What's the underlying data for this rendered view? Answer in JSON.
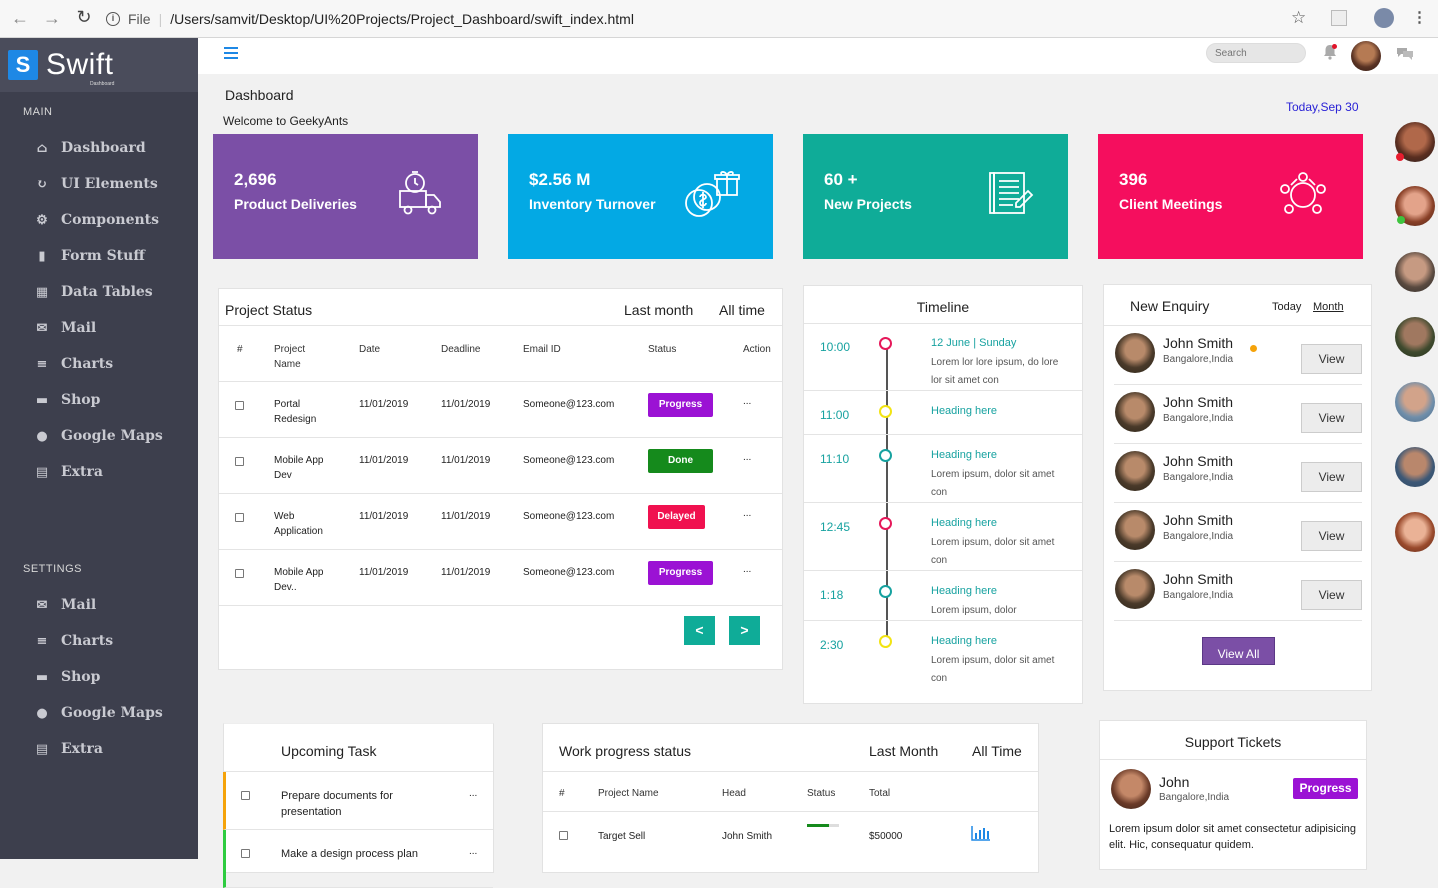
{
  "browser": {
    "file_label": "File",
    "url": "/Users/samvit/Desktop/UI%20Projects/Project_Dashboard/swift_index.html"
  },
  "brand": {
    "name": "Swift",
    "sub": "Dashboard",
    "logo_glyph": "S"
  },
  "sidebar": {
    "main_label": "MAIN",
    "main_items": [
      {
        "label": "Dashboard",
        "icon": "home-icon"
      },
      {
        "label": "UI Elements",
        "icon": "refresh-icon"
      },
      {
        "label": "Components",
        "icon": "gear-icon"
      },
      {
        "label": "Form Stuff",
        "icon": "file-icon"
      },
      {
        "label": "Data Tables",
        "icon": "table-icon"
      },
      {
        "label": "Mail",
        "icon": "mail-icon"
      },
      {
        "label": "Charts",
        "icon": "bars-icon"
      },
      {
        "label": "Shop",
        "icon": "card-icon"
      },
      {
        "label": "Google Maps",
        "icon": "pin-icon"
      },
      {
        "label": "Extra",
        "icon": "clipboard-icon"
      }
    ],
    "settings_label": "SETTINGS",
    "settings_items": [
      {
        "label": "Mail",
        "icon": "mail-icon"
      },
      {
        "label": "Charts",
        "icon": "bars-icon"
      },
      {
        "label": "Shop",
        "icon": "card-icon"
      },
      {
        "label": "Google Maps",
        "icon": "pin-icon"
      },
      {
        "label": "Extra",
        "icon": "clipboard-icon"
      }
    ]
  },
  "topbar": {
    "search_placeholder": "Search"
  },
  "header": {
    "title": "Dashboard",
    "welcome": "Welcome to GeekyAnts",
    "date": "Today,Sep 30"
  },
  "stats": [
    {
      "value": "2,696",
      "label": "Product Deliveries",
      "color": "#7b4fa6",
      "icon": "delivery-truck-icon"
    },
    {
      "value": "$2.56 M",
      "label": "Inventory Turnover",
      "color": "#03a9e4",
      "icon": "coins-gift-icon"
    },
    {
      "value": "60 +",
      "label": "New Projects",
      "color": "#0fac98",
      "icon": "document-list-icon"
    },
    {
      "value": "396",
      "label": "Client Meetings",
      "color": "#f50e5e",
      "icon": "meeting-table-icon"
    }
  ],
  "project_status": {
    "title": "Project Status",
    "tabs": [
      "Last month",
      "All time"
    ],
    "columns": [
      "#",
      "Project\nName",
      "Date",
      "Deadline",
      "Email ID",
      "Status",
      "Action"
    ],
    "rows": [
      {
        "name": "Portal\nRedesign",
        "date": "11/01/2019",
        "deadline": "11/01/2019",
        "email": "Someone@123.com",
        "status": "Progress",
        "action": "..."
      },
      {
        "name": "Mobile App\nDev",
        "date": "11/01/2019",
        "deadline": "11/01/2019",
        "email": "Someone@123.com",
        "status": "Done",
        "action": "..."
      },
      {
        "name": "Web\nApplication",
        "date": "11/01/2019",
        "deadline": "11/01/2019",
        "email": "Someone@123.com",
        "status": "Delayed",
        "action": "..."
      },
      {
        "name": "Mobile App\nDev..",
        "date": "11/01/2019",
        "deadline": "11/01/2019",
        "email": "Someone@123.com",
        "status": "Progress",
        "action": "..."
      }
    ],
    "prev": "<",
    "next": ">"
  },
  "status_colors": {
    "Progress": "#9b12d4",
    "Done": "#158a1c",
    "Delayed": "#f0114f"
  },
  "timeline": {
    "title": "Timeline",
    "items": [
      {
        "time": "10:00",
        "heading": "12 June | Sunday",
        "desc": "Lorem lor lore ipsum, do lore lor sit amet con",
        "color": "#e6185a"
      },
      {
        "time": "11:00",
        "heading": "Heading here",
        "desc": "",
        "color": "#f2e413"
      },
      {
        "time": "11:10",
        "heading": "Heading here",
        "desc": "Lorem ipsum, dolor sit amet con",
        "color": "#17a2a0"
      },
      {
        "time": "12:45",
        "heading": "Heading here",
        "desc": "Lorem ipsum, dolor sit amet con",
        "color": "#e6185a"
      },
      {
        "time": "1:18",
        "heading": "Heading here",
        "desc": "Lorem ipsum, dolor",
        "color": "#17a2a0"
      },
      {
        "time": "2:30",
        "heading": "Heading here",
        "desc": "Lorem ipsum, dolor sit amet con",
        "color": "#f2e413"
      }
    ]
  },
  "enquiry": {
    "title": "New Enquiry",
    "tabs": [
      "Today",
      "Month"
    ],
    "items": [
      {
        "name": "John Smith",
        "location": "Bangalore,India",
        "button": "View"
      },
      {
        "name": "John Smith",
        "location": "Bangalore,India",
        "button": "View"
      },
      {
        "name": "John Smith",
        "location": "Bangalore,India",
        "button": "View"
      },
      {
        "name": "John Smith",
        "location": "Bangalore,India",
        "button": "View"
      },
      {
        "name": "John Smith",
        "location": "Bangalore,India",
        "button": "View"
      }
    ],
    "view_all": "View All"
  },
  "upcoming": {
    "title": "Upcoming Task",
    "items": [
      {
        "text": "Prepare documents for presentation",
        "action": "...",
        "color": "#f5a30a"
      },
      {
        "text": "Make a design process plan",
        "action": "...",
        "color": "#2ecc40"
      }
    ]
  },
  "work_progress": {
    "title": "Work progress status",
    "tabs": [
      "Last Month",
      "All Time"
    ],
    "columns": [
      "#",
      "Project Name",
      "Head",
      "Status",
      "Total"
    ],
    "rows": [
      {
        "name": "Target Sell",
        "head": "John Smith",
        "progress": 0.7,
        "total": "$50000"
      }
    ]
  },
  "support": {
    "title": "Support Tickets",
    "name": "John",
    "location": "Bangalore,India",
    "status": "Progress",
    "text": "Lorem ipsum dolor sit amet consectetur adipisicing elit. Hic, consequatur quidem."
  }
}
